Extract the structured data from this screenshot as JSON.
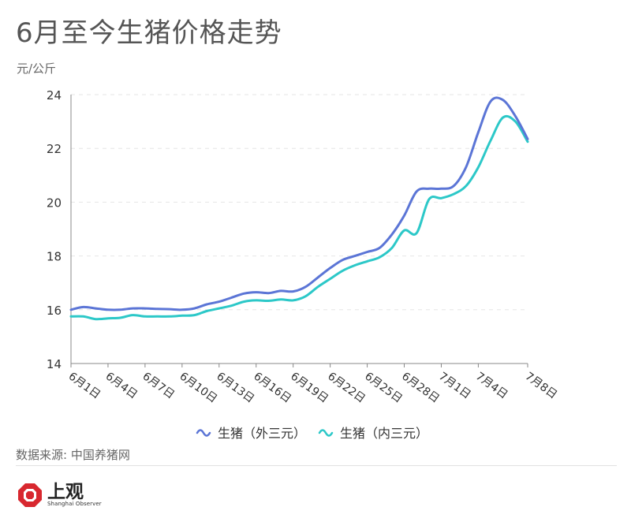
{
  "title": "6月至今生猪价格走势",
  "unit": "元/公斤",
  "source": "数据来源: 中国养猪网",
  "logo": {
    "name": "上观",
    "sub": "Shanghai Observer",
    "icon": "shanghai-observer-logo-icon",
    "color": "#d8282f"
  },
  "chart_data": {
    "type": "line",
    "x": [
      "6月1日",
      "6月4日",
      "6月7日",
      "6月10日",
      "6月13日",
      "6月16日",
      "6月19日",
      "6月22日",
      "6月25日",
      "6月28日",
      "7月1日",
      "7月4日",
      "7月8日"
    ],
    "x_day_offsets": [
      0,
      3,
      6,
      9,
      12,
      15,
      18,
      21,
      24,
      27,
      30,
      33,
      37
    ],
    "ylim": [
      14,
      24
    ],
    "yticks": [
      14,
      16,
      18,
      20,
      22,
      24
    ],
    "grid": true,
    "legend_position": "bottom",
    "series": [
      {
        "name": "生猪（外三元）",
        "color": "#5b75d6",
        "points": [
          [
            0,
            16.0
          ],
          [
            1,
            16.1
          ],
          [
            2,
            16.05
          ],
          [
            3,
            16.0
          ],
          [
            4,
            16.0
          ],
          [
            5,
            16.05
          ],
          [
            6,
            16.05
          ],
          [
            7,
            16.03
          ],
          [
            8,
            16.02
          ],
          [
            9,
            16.0
          ],
          [
            10,
            16.05
          ],
          [
            11,
            16.2
          ],
          [
            12,
            16.3
          ],
          [
            13,
            16.45
          ],
          [
            14,
            16.6
          ],
          [
            15,
            16.65
          ],
          [
            16,
            16.62
          ],
          [
            17,
            16.7
          ],
          [
            18,
            16.68
          ],
          [
            19,
            16.85
          ],
          [
            20,
            17.2
          ],
          [
            21,
            17.55
          ],
          [
            22,
            17.85
          ],
          [
            23,
            18.0
          ],
          [
            24,
            18.15
          ],
          [
            25,
            18.3
          ],
          [
            26,
            18.8
          ],
          [
            27,
            19.5
          ],
          [
            28,
            20.4
          ],
          [
            29,
            20.5
          ],
          [
            30,
            20.5
          ],
          [
            31,
            20.6
          ],
          [
            32,
            21.3
          ],
          [
            33,
            22.6
          ],
          [
            34,
            23.75
          ],
          [
            35,
            23.8
          ],
          [
            36,
            23.2
          ],
          [
            37,
            22.35
          ]
        ]
      },
      {
        "name": "生猪（内三元）",
        "color": "#2cc8c8",
        "points": [
          [
            0,
            15.75
          ],
          [
            1,
            15.75
          ],
          [
            2,
            15.65
          ],
          [
            3,
            15.68
          ],
          [
            4,
            15.7
          ],
          [
            5,
            15.8
          ],
          [
            6,
            15.75
          ],
          [
            7,
            15.75
          ],
          [
            8,
            15.75
          ],
          [
            9,
            15.78
          ],
          [
            10,
            15.8
          ],
          [
            11,
            15.95
          ],
          [
            12,
            16.05
          ],
          [
            13,
            16.15
          ],
          [
            14,
            16.3
          ],
          [
            15,
            16.35
          ],
          [
            16,
            16.33
          ],
          [
            17,
            16.38
          ],
          [
            18,
            16.35
          ],
          [
            19,
            16.5
          ],
          [
            20,
            16.85
          ],
          [
            21,
            17.15
          ],
          [
            22,
            17.45
          ],
          [
            23,
            17.65
          ],
          [
            24,
            17.8
          ],
          [
            25,
            17.95
          ],
          [
            26,
            18.3
          ],
          [
            27,
            18.95
          ],
          [
            28,
            18.85
          ],
          [
            29,
            20.1
          ],
          [
            30,
            20.15
          ],
          [
            31,
            20.3
          ],
          [
            32,
            20.6
          ],
          [
            33,
            21.3
          ],
          [
            34,
            22.3
          ],
          [
            35,
            23.15
          ],
          [
            36,
            23.0
          ],
          [
            37,
            22.25
          ]
        ]
      }
    ]
  }
}
